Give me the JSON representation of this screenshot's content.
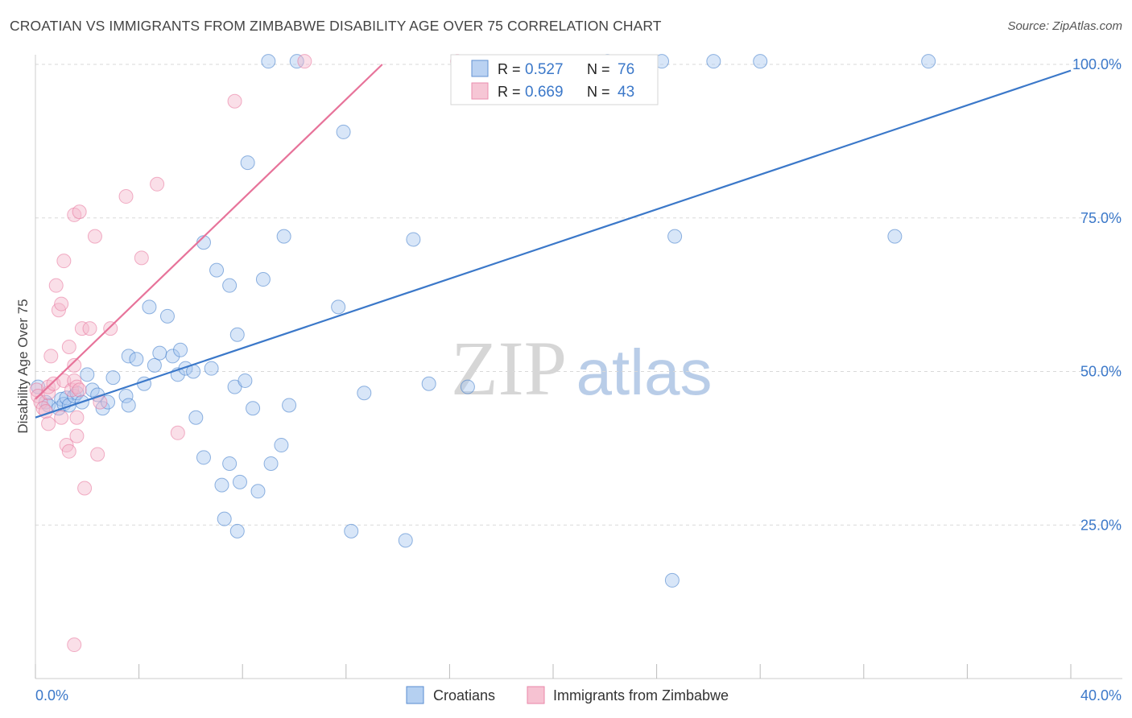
{
  "title": "CROATIAN VS IMMIGRANTS FROM ZIMBABWE DISABILITY AGE OVER 75 CORRELATION CHART",
  "source": "Source: ZipAtlas.com",
  "watermark": {
    "zip": "ZIP",
    "atlas": "atlas"
  },
  "colors": {
    "blue": "#3b78c9",
    "blue_fill": "#a9c8ef",
    "pink": "#e7739a",
    "pink_fill": "#f5b8cb",
    "grid": "#d9d9d9"
  },
  "legend": {
    "rows": [
      {
        "r_label": "R =",
        "r_value": "0.527",
        "n_label": "N =",
        "n_value": "76",
        "series": "blue"
      },
      {
        "r_label": "R =",
        "r_value": "0.669",
        "n_label": "N =",
        "n_value": "43",
        "series": "pink"
      }
    ]
  },
  "bottom_legend": [
    {
      "label": "Croatians",
      "series": "blue"
    },
    {
      "label": "Immigrants from Zimbabwe",
      "series": "pink"
    }
  ],
  "chart_data": {
    "type": "scatter",
    "title": "CROATIAN VS IMMIGRANTS FROM ZIMBABWE DISABILITY AGE OVER 75 CORRELATION CHART",
    "xlabel": "",
    "ylabel": "Disability Age Over 75",
    "xlim": [
      0,
      40
    ],
    "ylim": [
      0,
      100
    ],
    "x_ticks": [
      {
        "value": 0,
        "label": "0.0%"
      },
      {
        "value": 40,
        "label": "40.0%"
      }
    ],
    "y_ticks": [
      {
        "value": 25,
        "label": "25.0%"
      },
      {
        "value": 50,
        "label": "50.0%"
      },
      {
        "value": 75,
        "label": "75.0%"
      },
      {
        "value": 100,
        "label": "100.0%"
      }
    ],
    "grid": true,
    "legend_position": "top-center",
    "series": [
      {
        "name": "Croatians",
        "color": "#3b78c9",
        "r": 0.527,
        "n": 76,
        "trend": {
          "x": [
            0,
            40
          ],
          "y": [
            42.5,
            99
          ]
        },
        "points": [
          [
            0.1,
            47.5
          ],
          [
            0.4,
            45
          ],
          [
            0.5,
            44.5
          ],
          [
            0.9,
            44
          ],
          [
            1.0,
            45.5
          ],
          [
            1.1,
            44.7
          ],
          [
            1.2,
            45.7
          ],
          [
            1.3,
            44.5
          ],
          [
            1.5,
            46
          ],
          [
            1.6,
            46.5
          ],
          [
            1.8,
            45
          ],
          [
            2.0,
            49.5
          ],
          [
            2.2,
            47
          ],
          [
            2.4,
            46.2
          ],
          [
            2.6,
            44
          ],
          [
            2.8,
            45
          ],
          [
            3.0,
            49
          ],
          [
            3.5,
            46
          ],
          [
            3.6,
            44.5
          ],
          [
            3.6,
            52.5
          ],
          [
            3.9,
            52
          ],
          [
            4.2,
            48
          ],
          [
            4.4,
            60.5
          ],
          [
            4.6,
            51
          ],
          [
            4.8,
            53
          ],
          [
            5.1,
            59
          ],
          [
            5.3,
            52.5
          ],
          [
            5.5,
            49.5
          ],
          [
            5.6,
            53.5
          ],
          [
            5.8,
            50.5
          ],
          [
            6.1,
            50
          ],
          [
            6.2,
            42.5
          ],
          [
            6.5,
            36
          ],
          [
            6.5,
            71
          ],
          [
            6.8,
            50.5
          ],
          [
            7.0,
            66.5
          ],
          [
            7.2,
            31.5
          ],
          [
            7.3,
            26
          ],
          [
            7.5,
            64
          ],
          [
            7.5,
            35
          ],
          [
            7.7,
            47.5
          ],
          [
            7.8,
            56
          ],
          [
            7.8,
            24
          ],
          [
            7.9,
            32
          ],
          [
            8.1,
            48.5
          ],
          [
            8.2,
            84
          ],
          [
            8.4,
            44
          ],
          [
            8.6,
            30.5
          ],
          [
            8.8,
            65
          ],
          [
            9.0,
            100.5
          ],
          [
            9.1,
            35
          ],
          [
            9.5,
            38
          ],
          [
            9.6,
            72
          ],
          [
            9.8,
            44.5
          ],
          [
            10.1,
            100.5
          ],
          [
            11.7,
            60.5
          ],
          [
            11.9,
            89
          ],
          [
            12.2,
            24
          ],
          [
            12.7,
            46.5
          ],
          [
            14.3,
            22.5
          ],
          [
            14.6,
            71.5
          ],
          [
            15.2,
            48
          ],
          [
            16.7,
            47.5
          ],
          [
            22.1,
            100.5
          ],
          [
            23.1,
            96.5
          ],
          [
            24.6,
            16
          ],
          [
            24.2,
            100.5
          ],
          [
            24.7,
            72
          ],
          [
            26.2,
            100.5
          ],
          [
            28.0,
            100.5
          ],
          [
            33.2,
            72
          ],
          [
            34.5,
            100.5
          ]
        ]
      },
      {
        "name": "Immigrants from Zimbabwe",
        "color": "#e7739a",
        "r": 0.669,
        "n": 43,
        "trend": {
          "x": [
            0,
            13.4
          ],
          "y": [
            45.5,
            100
          ]
        },
        "points": [
          [
            0.05,
            47
          ],
          [
            0.1,
            46
          ],
          [
            0.2,
            45
          ],
          [
            0.3,
            44
          ],
          [
            0.4,
            43.5
          ],
          [
            0.5,
            46.5
          ],
          [
            0.5,
            41.5
          ],
          [
            0.5,
            47.5
          ],
          [
            0.6,
            52.5
          ],
          [
            0.7,
            48
          ],
          [
            0.8,
            64
          ],
          [
            0.9,
            60
          ],
          [
            1.0,
            61
          ],
          [
            1.0,
            42.5
          ],
          [
            1.1,
            68
          ],
          [
            1.1,
            48.5
          ],
          [
            1.2,
            38
          ],
          [
            1.3,
            37
          ],
          [
            1.3,
            54
          ],
          [
            1.4,
            47
          ],
          [
            1.5,
            51
          ],
          [
            1.5,
            48.5
          ],
          [
            1.5,
            5.5
          ],
          [
            1.6,
            39.5
          ],
          [
            1.6,
            47.5
          ],
          [
            1.5,
            75.5
          ],
          [
            1.6,
            42.5
          ],
          [
            1.7,
            76
          ],
          [
            1.7,
            47
          ],
          [
            1.9,
            31
          ],
          [
            1.8,
            57
          ],
          [
            2.1,
            57
          ],
          [
            2.3,
            72
          ],
          [
            2.4,
            36.5
          ],
          [
            2.5,
            45
          ],
          [
            2.9,
            57
          ],
          [
            3.5,
            78.5
          ],
          [
            4.1,
            68.5
          ],
          [
            4.7,
            80.5
          ],
          [
            5.5,
            40
          ],
          [
            7.7,
            94
          ],
          [
            10.4,
            100.5
          ],
          [
            16.3,
            100.5
          ]
        ]
      }
    ]
  }
}
